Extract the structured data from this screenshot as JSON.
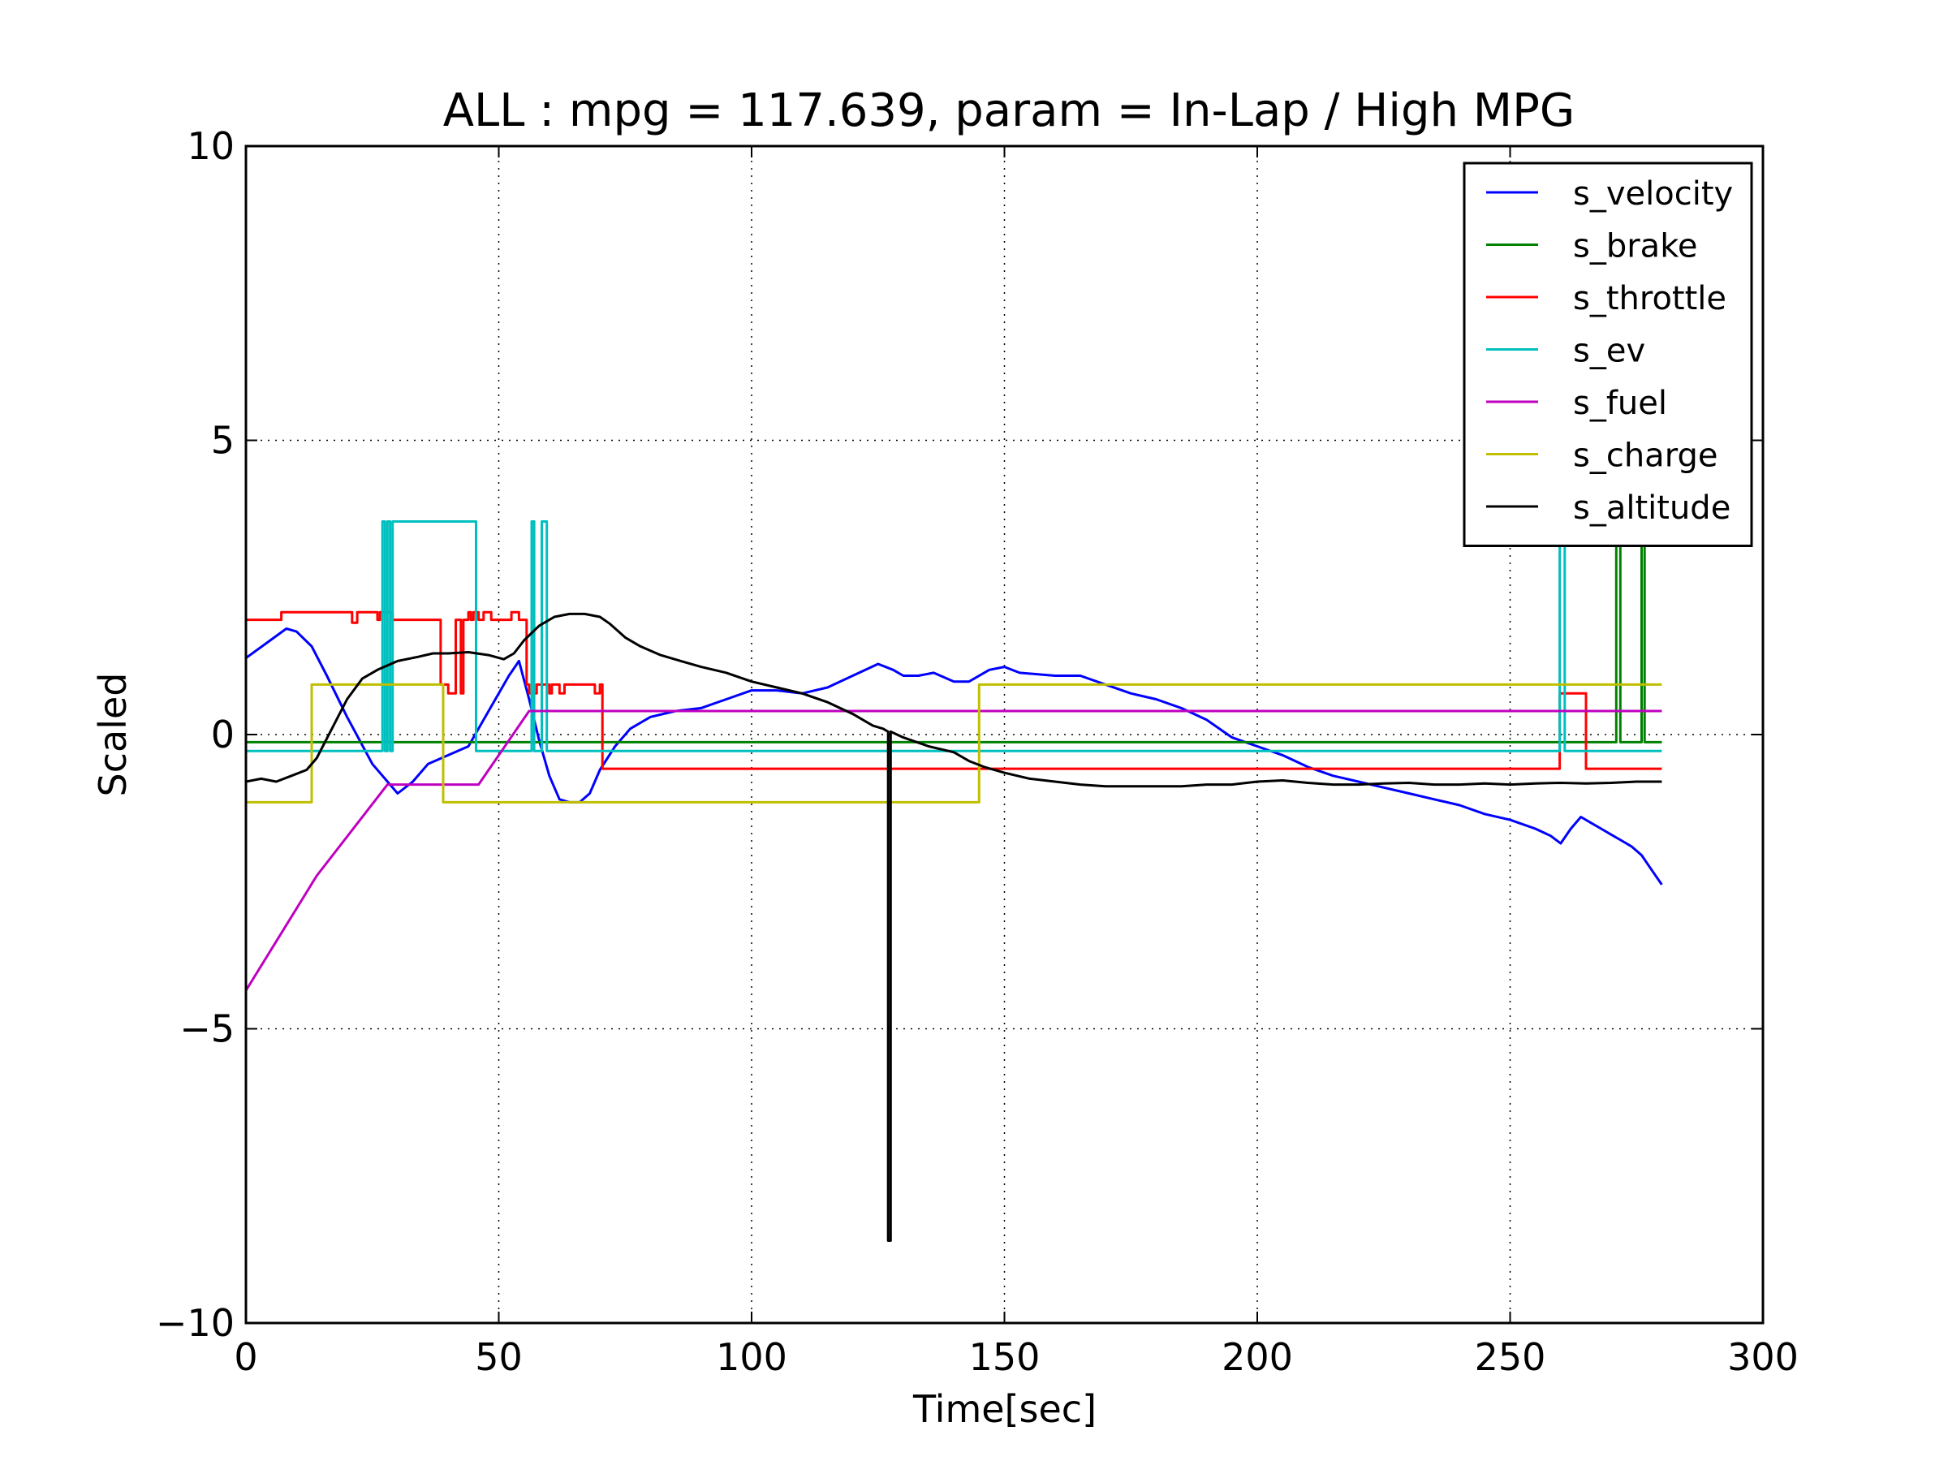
{
  "chart_data": {
    "type": "line",
    "title": "ALL : mpg = 117.639, param = In-Lap / High MPG",
    "xlabel": "Time[sec]",
    "ylabel": "Scaled",
    "xlim": [
      0,
      300
    ],
    "ylim": [
      -10,
      10
    ],
    "xticks": [
      0,
      50,
      100,
      150,
      200,
      250,
      300
    ],
    "xtick_labels": [
      "0",
      "50",
      "100",
      "150",
      "200",
      "250",
      "300"
    ],
    "yticks": [
      -10,
      -5,
      0,
      5,
      10
    ],
    "ytick_labels": [
      "−10",
      "−5",
      "0",
      "5",
      "10"
    ],
    "grid": true,
    "legend_position": "top-right",
    "series": [
      {
        "name": "s_velocity",
        "color": "#0000ff",
        "x": [
          0,
          4,
          8,
          10,
          13,
          16,
          20,
          25,
          30,
          33,
          36,
          40,
          44,
          48,
          52,
          54,
          56,
          58,
          60,
          62,
          64,
          66,
          68,
          70,
          73,
          76,
          80,
          85,
          90,
          95,
          100,
          105,
          110,
          115,
          120,
          125,
          128,
          130,
          133,
          136,
          140,
          143,
          147,
          150,
          153,
          160,
          165,
          170,
          175,
          180,
          185,
          190,
          195,
          200,
          205,
          210,
          215,
          220,
          225,
          230,
          235,
          240,
          245,
          250,
          255,
          258,
          260,
          262,
          264,
          266,
          268,
          270,
          272,
          274,
          276,
          278,
          280
        ],
        "y": [
          1.3,
          1.55,
          1.8,
          1.75,
          1.5,
          1.0,
          0.3,
          -0.5,
          -1.0,
          -0.8,
          -0.5,
          -0.35,
          -0.2,
          0.4,
          1.0,
          1.25,
          0.6,
          -0.1,
          -0.7,
          -1.1,
          -1.15,
          -1.15,
          -1.0,
          -0.6,
          -0.2,
          0.1,
          0.3,
          0.4,
          0.45,
          0.6,
          0.75,
          0.75,
          0.7,
          0.8,
          1.0,
          1.2,
          1.1,
          1.0,
          1.0,
          1.05,
          0.9,
          0.9,
          1.1,
          1.15,
          1.05,
          1.0,
          1.0,
          0.85,
          0.7,
          0.6,
          0.45,
          0.25,
          -0.05,
          -0.2,
          -0.35,
          -0.55,
          -0.7,
          -0.8,
          -0.9,
          -1.0,
          -1.1,
          -1.2,
          -1.35,
          -1.45,
          -1.6,
          -1.72,
          -1.85,
          -1.6,
          -1.4,
          -1.5,
          -1.6,
          -1.7,
          -1.8,
          -1.9,
          -2.05,
          -2.3,
          -2.55
        ]
      },
      {
        "name": "s_brake",
        "color": "#008000",
        "x": [
          0,
          271,
          271,
          271.8,
          271.8,
          276,
          276,
          276.6,
          276.6,
          280
        ],
        "y": [
          -0.13,
          -0.13,
          3.6,
          3.6,
          -0.13,
          -0.13,
          3.6,
          3.6,
          -0.13,
          -0.13
        ]
      },
      {
        "name": "s_throttle",
        "color": "#ff0000",
        "x": [
          0,
          7,
          7,
          21,
          21,
          22,
          22,
          26,
          26,
          26.5,
          26.5,
          29,
          29,
          38.5,
          38.5,
          40,
          40,
          41.5,
          41.5,
          42.5,
          42.5,
          43,
          43,
          44,
          44,
          44.5,
          44.5,
          45,
          45,
          46,
          46,
          47,
          47,
          48.5,
          48.5,
          52.5,
          52.5,
          54,
          54,
          55.5,
          55.5,
          56,
          56,
          57.5,
          57.5,
          60,
          60,
          60.5,
          60.5,
          62,
          62,
          63,
          63,
          69,
          69,
          70,
          70,
          70.5,
          70.5,
          259.8,
          259.8,
          265,
          265,
          280
        ],
        "y": [
          1.95,
          1.95,
          2.08,
          2.08,
          1.9,
          1.9,
          2.08,
          2.08,
          1.95,
          1.95,
          2.08,
          2.08,
          1.95,
          1.95,
          0.85,
          0.85,
          0.7,
          0.7,
          1.95,
          1.95,
          0.7,
          0.7,
          1.95,
          1.95,
          2.08,
          2.08,
          1.95,
          1.95,
          2.08,
          2.08,
          1.95,
          1.95,
          2.08,
          2.08,
          1.95,
          1.95,
          2.08,
          2.08,
          1.95,
          1.95,
          0.85,
          0.85,
          0.7,
          0.7,
          0.85,
          0.85,
          0.7,
          0.7,
          0.85,
          0.85,
          0.7,
          0.7,
          0.85,
          0.85,
          0.7,
          0.7,
          0.85,
          0.85,
          -0.58,
          -0.58,
          0.7,
          0.7,
          -0.58,
          -0.58
        ]
      },
      {
        "name": "s_ev",
        "color": "#00bfbf",
        "x": [
          0,
          27,
          27,
          27.5,
          27.5,
          28,
          28,
          28.5,
          28.5,
          29,
          29,
          45.5,
          45.5,
          56.5,
          56.5,
          57,
          57,
          58.5,
          58.5,
          59.5,
          59.5,
          60,
          60,
          259.8,
          259.8,
          260.8,
          260.8,
          280
        ],
        "y": [
          -0.28,
          -0.28,
          3.62,
          3.62,
          -0.28,
          -0.28,
          3.62,
          3.62,
          -0.28,
          -0.28,
          3.62,
          3.62,
          -0.28,
          -0.28,
          3.62,
          3.62,
          -0.28,
          -0.28,
          3.62,
          3.62,
          -0.28,
          -0.28,
          -0.28,
          -0.28,
          3.62,
          3.62,
          -0.28,
          -0.28
        ]
      },
      {
        "name": "s_fuel",
        "color": "#bf00bf",
        "x": [
          0,
          14,
          28,
          30,
          46,
          56,
          56.5,
          280
        ],
        "y": [
          -4.35,
          -2.4,
          -0.85,
          -0.85,
          -0.85,
          0.4,
          0.4,
          0.4
        ]
      },
      {
        "name": "s_charge",
        "color": "#bfbf00",
        "x": [
          0,
          13,
          13,
          39,
          39,
          145,
          145,
          280
        ],
        "y": [
          -1.15,
          -1.15,
          0.85,
          0.85,
          -1.15,
          -1.15,
          0.85,
          0.85
        ]
      },
      {
        "name": "s_altitude",
        "color": "#000000",
        "x": [
          0,
          3,
          6,
          9,
          12,
          14,
          17,
          20,
          23,
          26,
          30,
          34,
          37,
          40,
          44,
          48,
          51,
          53,
          55,
          58,
          61,
          64,
          67,
          70,
          72,
          75,
          78,
          82,
          86,
          90,
          95,
          100,
          105,
          110,
          115,
          120,
          124,
          126,
          127,
          127,
          127.5,
          127.5,
          130,
          135,
          140,
          143,
          146,
          150,
          155,
          160,
          165,
          170,
          175,
          180,
          185,
          190,
          195,
          200,
          205,
          210,
          215,
          220,
          225,
          230,
          235,
          240,
          245,
          250,
          255,
          260,
          265,
          270,
          275,
          280
        ],
        "y": [
          -0.8,
          -0.75,
          -0.8,
          -0.7,
          -0.6,
          -0.4,
          0.1,
          0.6,
          0.95,
          1.1,
          1.25,
          1.32,
          1.38,
          1.38,
          1.4,
          1.35,
          1.28,
          1.38,
          1.6,
          1.85,
          2.0,
          2.05,
          2.05,
          2.0,
          1.88,
          1.65,
          1.5,
          1.35,
          1.25,
          1.15,
          1.05,
          0.9,
          0.8,
          0.7,
          0.55,
          0.35,
          0.15,
          0.1,
          0.05,
          -8.6,
          -8.6,
          0.05,
          -0.05,
          -0.2,
          -0.3,
          -0.45,
          -0.55,
          -0.65,
          -0.75,
          -0.8,
          -0.85,
          -0.88,
          -0.88,
          -0.88,
          -0.88,
          -0.85,
          -0.85,
          -0.8,
          -0.78,
          -0.82,
          -0.85,
          -0.85,
          -0.83,
          -0.82,
          -0.85,
          -0.85,
          -0.83,
          -0.85,
          -0.83,
          -0.82,
          -0.83,
          -0.82,
          -0.8,
          -0.8
        ]
      }
    ]
  }
}
